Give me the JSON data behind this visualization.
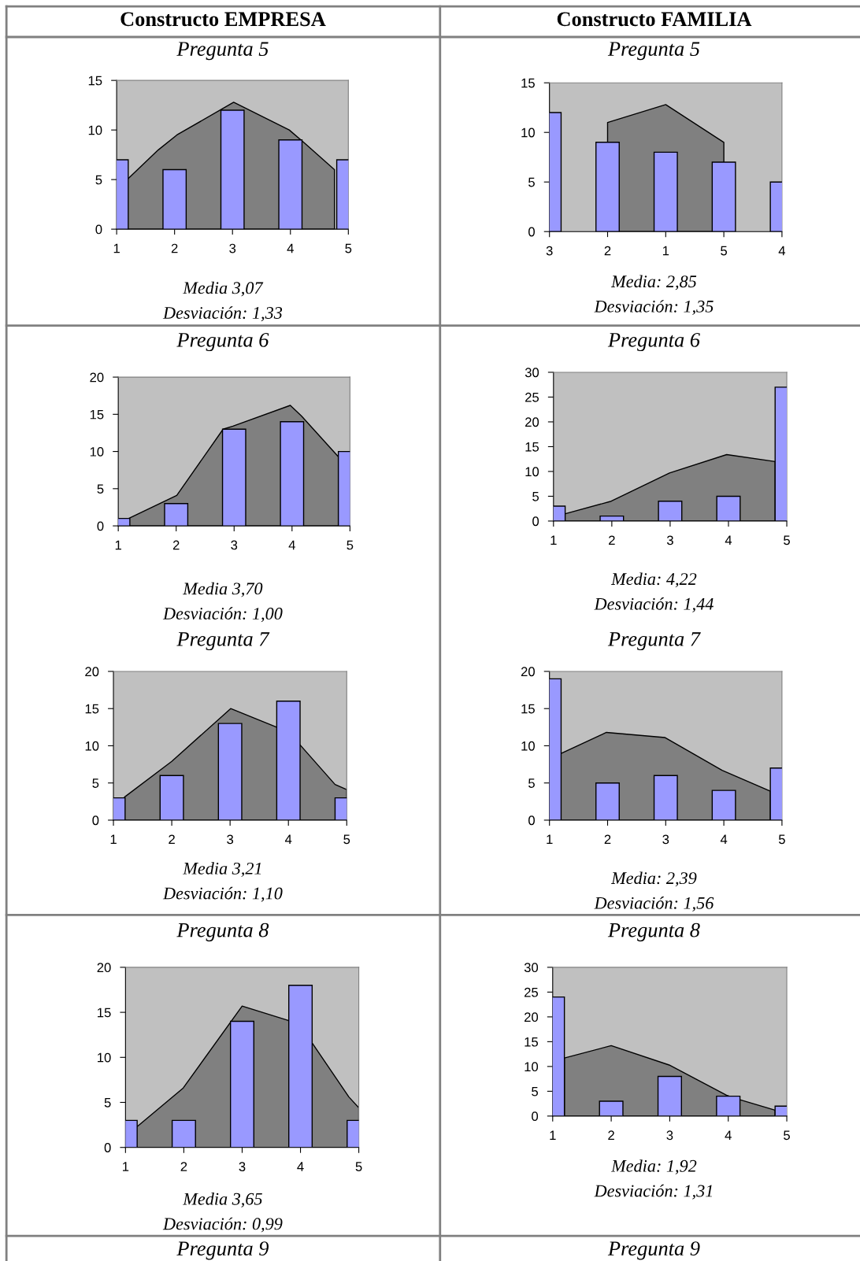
{
  "chart_data": [
    {
      "type": "bar",
      "title": "Constructo EMPRESA",
      "subtitle": "Pregunta 5",
      "x": [
        1,
        2,
        3,
        4,
        5
      ],
      "series": [
        {
          "type": "area",
          "color": "#808080",
          "x": [
            1.18,
            1.72,
            2.04,
            3.02,
            3.98,
            4.24,
            4.76
          ],
          "values": [
            5.0,
            8.0,
            9.5,
            12.8,
            10.0,
            8.7,
            6.0
          ]
        },
        {
          "color": "#9999ff",
          "values": [
            7,
            6,
            12,
            9,
            7
          ]
        }
      ],
      "xlim": [
        1,
        5
      ],
      "ylim": [
        0,
        15
      ],
      "xticks": [
        1,
        2,
        3,
        4,
        5
      ],
      "yticks": [
        0,
        5,
        10,
        15
      ],
      "grid": false,
      "annotations": [
        "Media 3,07",
        "Desviación: 1,33"
      ]
    },
    {
      "type": "bar",
      "title": "Constructo FAMILIA",
      "subtitle": "Pregunta 5",
      "categories": [
        "3",
        "2",
        "1",
        "5",
        "4"
      ],
      "series": [
        {
          "type": "area",
          "color": "#808080",
          "values": [
            null,
            11.0,
            12.8,
            9.0,
            null
          ]
        },
        {
          "color": "#9999ff",
          "values": [
            12,
            9,
            8,
            7,
            5
          ]
        }
      ],
      "ylim": [
        0,
        15
      ],
      "yticks": [
        0,
        5,
        10,
        15
      ],
      "grid": false,
      "annotations": [
        "Media: 2,85",
        "Desviación: 1,35"
      ]
    },
    {
      "type": "bar",
      "subtitle": "Pregunta 6",
      "x": [
        1,
        2,
        3,
        4,
        5
      ],
      "series": [
        {
          "type": "area",
          "color": "#808080",
          "x": [
            1.18,
            2.01,
            2.81,
            2.98,
            3.97,
            4.16,
            4.8
          ],
          "values": [
            1.0,
            4.1,
            13.0,
            13.4,
            16.2,
            14.8,
            9.3
          ]
        },
        {
          "color": "#9999ff",
          "values": [
            1,
            3,
            13,
            14,
            10
          ]
        }
      ],
      "xlim": [
        1,
        5
      ],
      "ylim": [
        0,
        20
      ],
      "xticks": [
        1,
        2,
        3,
        4,
        5
      ],
      "yticks": [
        0,
        5,
        10,
        15,
        20
      ],
      "grid": false,
      "annotations": [
        "Media 3,70",
        "Desviación: 1,00"
      ]
    },
    {
      "type": "bar",
      "subtitle": "Pregunta 6",
      "x": [
        1,
        2,
        3,
        4,
        5
      ],
      "series": [
        {
          "type": "area",
          "color": "#808080",
          "x": [
            1.18,
            1.99,
            2.99,
            3.97,
            4.8
          ],
          "values": [
            1.4,
            4.0,
            9.7,
            13.4,
            12.0
          ]
        },
        {
          "color": "#9999ff",
          "values": [
            3,
            1,
            4,
            5,
            27
          ]
        }
      ],
      "xlim": [
        1,
        5
      ],
      "ylim": [
        0,
        30
      ],
      "xticks": [
        1,
        2,
        3,
        4,
        5
      ],
      "yticks": [
        0,
        5,
        10,
        15,
        20,
        25,
        30
      ],
      "grid": false,
      "annotations": [
        "Media: 4,22",
        "Desviación: 1,44"
      ]
    },
    {
      "type": "bar",
      "subtitle": "Pregunta 7",
      "x": [
        1,
        2,
        3,
        4,
        5
      ],
      "series": [
        {
          "type": "area",
          "color": "#808080",
          "x": [
            1.19,
            2.0,
            3.01,
            3.8,
            4.18,
            4.8,
            5
          ],
          "values": [
            3.1,
            7.9,
            15.0,
            12.5,
            10.3,
            4.8,
            4.1
          ]
        },
        {
          "color": "#9999ff",
          "values": [
            3,
            6,
            13,
            16,
            3
          ]
        }
      ],
      "xlim": [
        1,
        5
      ],
      "ylim": [
        0,
        20
      ],
      "xticks": [
        1,
        2,
        3,
        4,
        5
      ],
      "yticks": [
        0,
        5,
        10,
        15,
        20
      ],
      "grid": false,
      "annotations": [
        "Media 3,21",
        "Desviación: 1,10"
      ]
    },
    {
      "type": "bar",
      "subtitle": "Pregunta 7",
      "x": [
        1,
        2,
        3,
        4,
        5
      ],
      "series": [
        {
          "type": "area",
          "color": "#808080",
          "x": [
            1.18,
            1.98,
            2.99,
            3.97,
            4.8
          ],
          "values": [
            8.9,
            11.8,
            11.1,
            6.7,
            3.9
          ]
        },
        {
          "color": "#9999ff",
          "values": [
            19,
            5,
            6,
            4,
            7
          ]
        }
      ],
      "xlim": [
        1,
        5
      ],
      "ylim": [
        0,
        20
      ],
      "xticks": [
        1,
        2,
        3,
        4,
        5
      ],
      "yticks": [
        0,
        5,
        10,
        15,
        20
      ],
      "grid": false,
      "annotations": [
        "Media: 2,39",
        "Desviación: 1,56"
      ]
    },
    {
      "type": "bar",
      "subtitle": "Pregunta 8",
      "x": [
        1,
        2,
        3,
        4,
        5
      ],
      "series": [
        {
          "type": "area",
          "color": "#808080",
          "x": [
            1.18,
            1.99,
            3.0,
            3.79,
            4.19,
            4.83,
            5
          ],
          "values": [
            2.2,
            6.6,
            15.7,
            14.1,
            11.7,
            5.6,
            4.4
          ]
        },
        {
          "color": "#9999ff",
          "values": [
            3,
            3,
            14,
            18,
            3
          ]
        }
      ],
      "xlim": [
        1,
        5
      ],
      "ylim": [
        0,
        20
      ],
      "xticks": [
        1,
        2,
        3,
        4,
        5
      ],
      "yticks": [
        0,
        5,
        10,
        15,
        20
      ],
      "grid": false,
      "annotations": [
        "Media 3,65",
        "Desviación: 0,99",
        "Pregunta 9"
      ]
    },
    {
      "type": "bar",
      "subtitle": "Pregunta 8",
      "x": [
        1,
        2,
        3,
        4,
        5
      ],
      "series": [
        {
          "type": "area",
          "color": "#808080",
          "x": [
            1.2,
            2.0,
            2.99,
            3.97,
            4.2,
            4.8
          ],
          "values": [
            11.7,
            14.2,
            10.3,
            4.2,
            3.3,
            1.2
          ]
        },
        {
          "color": "#9999ff",
          "values": [
            24,
            3,
            8,
            4,
            2
          ]
        }
      ],
      "xlim": [
        1,
        5
      ],
      "ylim": [
        0,
        30
      ],
      "xticks": [
        1,
        2,
        3,
        4,
        5
      ],
      "yticks": [
        0,
        5,
        10,
        15,
        20,
        25,
        30
      ],
      "grid": false,
      "annotations": [
        "Media: 1,92",
        "Desviación: 1,31",
        "Pregunta 9"
      ]
    }
  ]
}
